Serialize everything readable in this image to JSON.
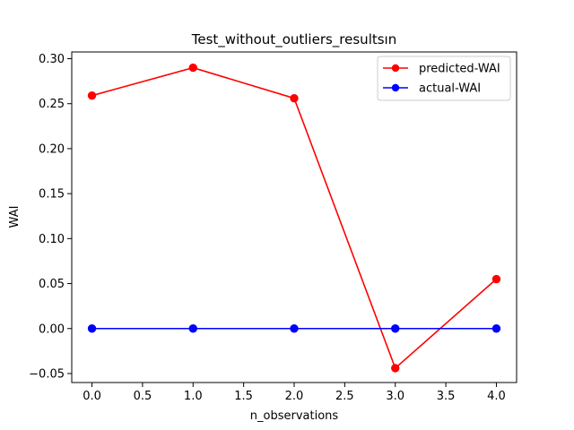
{
  "chart_data": {
    "type": "line",
    "title": "Test_without_outliers_resultsın",
    "xlabel": "n_observations",
    "ylabel": "WAI",
    "x": [
      0,
      1,
      2,
      3,
      4
    ],
    "xlim": [
      -0.2,
      4.2
    ],
    "ylim": [
      -0.06,
      0.3075
    ],
    "xticks": [
      0.0,
      0.5,
      1.0,
      1.5,
      2.0,
      2.5,
      3.0,
      3.5,
      4.0
    ],
    "yticks": [
      -0.05,
      0.0,
      0.05,
      0.1,
      0.15,
      0.2,
      0.25,
      0.3
    ],
    "xtick_labels": [
      "0.0",
      "0.5",
      "1.0",
      "1.5",
      "2.0",
      "2.5",
      "3.0",
      "3.5",
      "4.0"
    ],
    "ytick_labels": [
      "−0.05",
      "0.00",
      "0.05",
      "0.10",
      "0.15",
      "0.20",
      "0.25",
      "0.30"
    ],
    "grid": false,
    "legend_position": "top-right",
    "series": [
      {
        "name": "predicted-WAI",
        "color": "#ff0000",
        "values": [
          0.259,
          0.29,
          0.256,
          -0.044,
          0.055
        ]
      },
      {
        "name": "actual-WAI",
        "color": "#0000ff",
        "values": [
          0.0,
          0.0,
          0.0,
          0.0,
          0.0
        ]
      }
    ]
  }
}
